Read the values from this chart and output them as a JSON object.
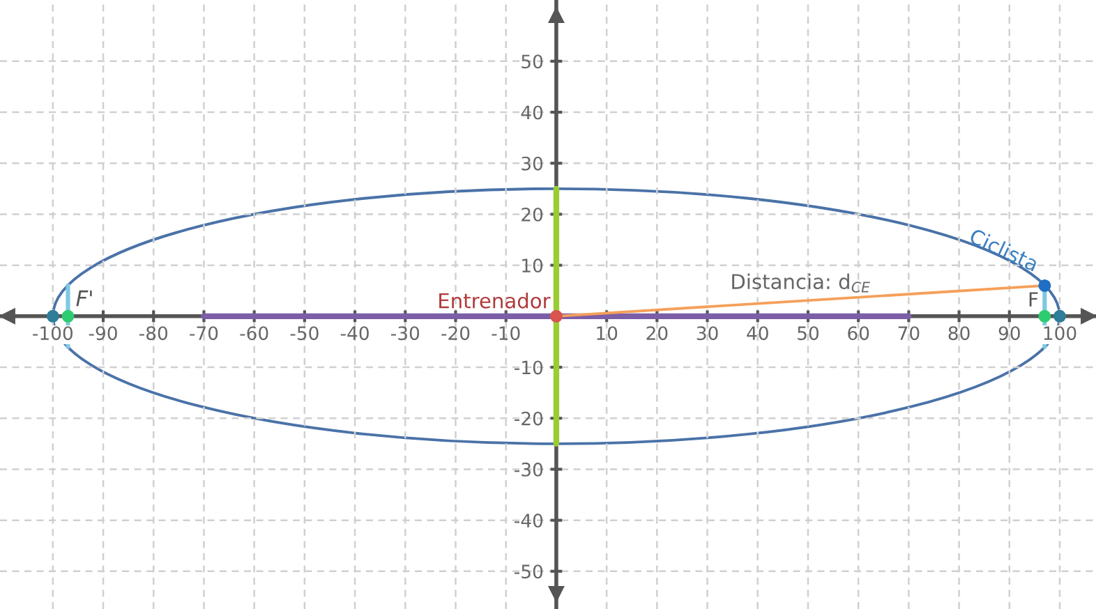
{
  "chart_data": {
    "type": "line",
    "xlim": [
      -110.5,
      107.2
    ],
    "ylim": [
      -57.4,
      62
    ],
    "xticks": [
      -100,
      -90,
      -80,
      -70,
      -60,
      -50,
      -40,
      -30,
      -20,
      -10,
      10,
      20,
      30,
      40,
      50,
      60,
      70,
      80,
      90,
      100
    ],
    "yticks": [
      -50,
      -40,
      -30,
      -20,
      -10,
      10,
      20,
      30,
      40,
      50
    ],
    "grid": true,
    "series": [
      {
        "color": "#7b5ea7",
        "x": [
          -70,
          70
        ],
        "values": [
          0,
          0
        ]
      },
      {
        "color": "#9acd32",
        "x": [
          0,
          0
        ],
        "values": [
          -25,
          25
        ]
      },
      {
        "color": "#f5a05a",
        "x": [
          0,
          97
        ],
        "values": [
          0,
          6
        ]
      },
      {
        "color": "#7ec8e3",
        "x": [
          -97,
          -97
        ],
        "values": [
          -6,
          6
        ]
      },
      {
        "color": "#7ec8e3",
        "x": [
          97,
          97
        ],
        "values": [
          -6,
          6
        ]
      },
      {
        "type": "scatter",
        "color": "#2e7d9a",
        "x": [
          -100,
          100
        ],
        "values": [
          0,
          0
        ]
      },
      {
        "type": "scatter",
        "color": "#2ecc71",
        "x": [
          -97,
          97
        ],
        "values": [
          0,
          0
        ]
      },
      {
        "type": "scatter",
        "color": "#1f6fc4",
        "x": [
          97
        ],
        "values": [
          6
        ]
      },
      {
        "type": "scatter",
        "color": "#d9534f",
        "x": [
          0
        ],
        "values": [
          0
        ]
      }
    ],
    "annotations": [
      {
        "text": "F'",
        "x": -97,
        "y": 0
      },
      {
        "text": "F",
        "x": 97,
        "y": 0
      },
      {
        "text": "Entrenador",
        "x": 0,
        "y": 0
      },
      {
        "text": "Ciclista",
        "x": 97,
        "y": 6
      },
      {
        "text": "Distancia: d$_{CE}$",
        "x": 48.5,
        "y": 3
      }
    ]
  }
}
